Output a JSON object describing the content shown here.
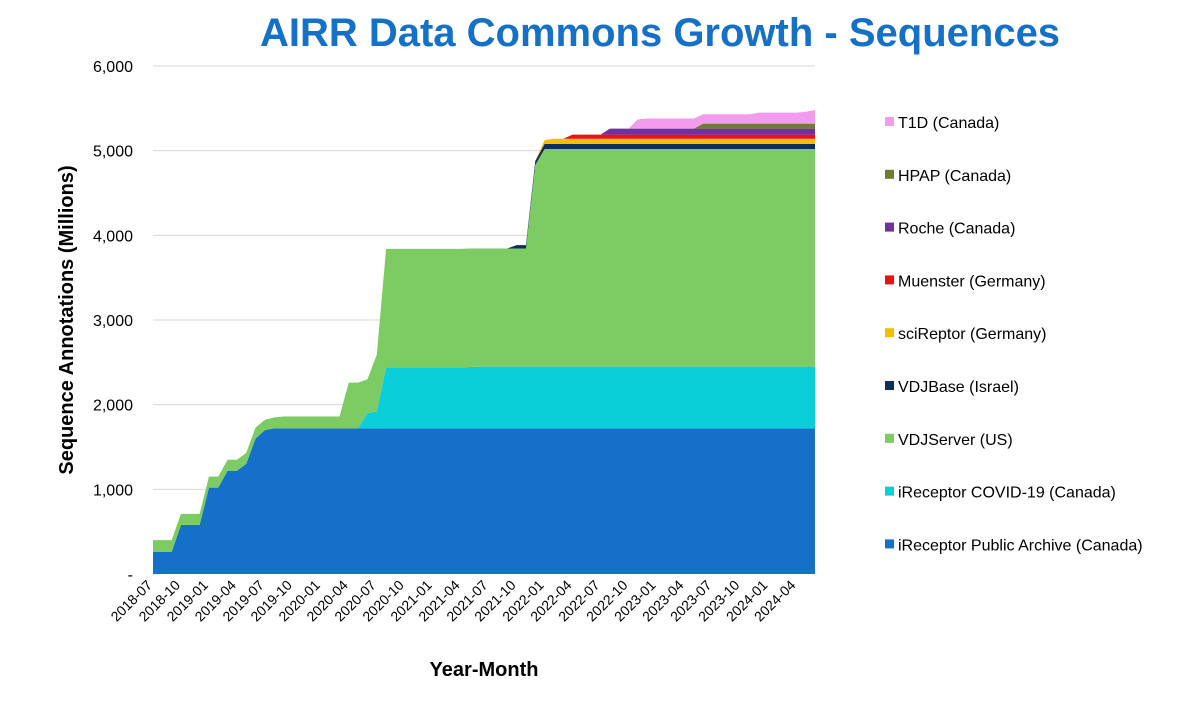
{
  "chart_data": {
    "type": "area",
    "stacked": true,
    "title": "AIRR Data Commons Growth - Sequences",
    "title_color": "#1570c8",
    "xlabel": "Year-Month",
    "ylabel": "Sequence Annotations (Millions)",
    "ylim": [
      0,
      6000
    ],
    "yticks": [
      0,
      1000,
      2000,
      3000,
      4000,
      5000,
      6000
    ],
    "ytick_labels": [
      "-",
      "1,000",
      "2,000",
      "3,000",
      "4,000",
      "5,000",
      "6,000"
    ],
    "x_tick_labels": [
      "2018-07",
      "2018-10",
      "2019-01",
      "2019-04",
      "2019-07",
      "2019-10",
      "2020-01",
      "2020-04",
      "2020-07",
      "2020-10",
      "2021-01",
      "2021-04",
      "2021-07",
      "2021-10",
      "2022-01",
      "2022-04",
      "2022-07",
      "2022-10",
      "2023-01",
      "2023-04",
      "2023-07",
      "2023-10",
      "2024-01",
      "2024-04"
    ],
    "grid": true,
    "legend_position": "right",
    "x": [
      "2018-07",
      "2018-08",
      "2018-09",
      "2018-10",
      "2018-11",
      "2018-12",
      "2019-01",
      "2019-02",
      "2019-03",
      "2019-04",
      "2019-05",
      "2019-06",
      "2019-07",
      "2019-08",
      "2019-09",
      "2019-10",
      "2019-11",
      "2019-12",
      "2020-01",
      "2020-02",
      "2020-03",
      "2020-04",
      "2020-05",
      "2020-06",
      "2020-07",
      "2020-08",
      "2020-09",
      "2020-10",
      "2020-11",
      "2020-12",
      "2021-01",
      "2021-02",
      "2021-03",
      "2021-04",
      "2021-05",
      "2021-06",
      "2021-07",
      "2021-08",
      "2021-09",
      "2021-10",
      "2021-11",
      "2021-12",
      "2022-01",
      "2022-02",
      "2022-03",
      "2022-04",
      "2022-05",
      "2022-06",
      "2022-07",
      "2022-08",
      "2022-09",
      "2022-10",
      "2022-11",
      "2022-12",
      "2023-01",
      "2023-02",
      "2023-03",
      "2023-04",
      "2023-05",
      "2023-06",
      "2023-07",
      "2023-08",
      "2023-09",
      "2023-10",
      "2023-11",
      "2023-12",
      "2024-01",
      "2024-02",
      "2024-03",
      "2024-04",
      "2024-05",
      "2024-06"
    ],
    "series": [
      {
        "name": "iReceptor Public Archive (Canada)",
        "color": "#1470c8",
        "values": [
          260,
          260,
          260,
          580,
          580,
          580,
          1020,
          1020,
          1220,
          1220,
          1300,
          1600,
          1700,
          1720,
          1720,
          1720,
          1720,
          1720,
          1720,
          1720,
          1720,
          1720,
          1720,
          1720,
          1720,
          1720,
          1720,
          1720,
          1720,
          1720,
          1720,
          1720,
          1720,
          1720,
          1720,
          1720,
          1720,
          1720,
          1720,
          1720,
          1720,
          1720,
          1720,
          1720,
          1720,
          1720,
          1720,
          1720,
          1720,
          1720,
          1720,
          1720,
          1720,
          1720,
          1720,
          1720,
          1720,
          1720,
          1720,
          1720,
          1720,
          1720,
          1720,
          1720,
          1720,
          1720,
          1720,
          1720,
          1720,
          1720,
          1720,
          1720
        ]
      },
      {
        "name": "iReceptor COVID-19 (Canada)",
        "color": "#0bcfd8",
        "values": [
          0,
          0,
          0,
          0,
          0,
          0,
          0,
          0,
          0,
          0,
          0,
          0,
          0,
          0,
          0,
          0,
          0,
          0,
          0,
          0,
          0,
          0,
          0,
          180,
          200,
          720,
          720,
          720,
          720,
          720,
          720,
          720,
          720,
          720,
          725,
          730,
          730,
          730,
          730,
          730,
          730,
          730,
          730,
          730,
          730,
          730,
          730,
          730,
          730,
          730,
          730,
          730,
          730,
          730,
          730,
          730,
          730,
          730,
          730,
          730,
          730,
          730,
          730,
          730,
          730,
          730,
          730,
          730,
          730,
          730,
          730,
          730
        ]
      },
      {
        "name": "VDJServer (US)",
        "color": "#7dcb63",
        "values": [
          140,
          140,
          140,
          130,
          130,
          130,
          130,
          130,
          130,
          130,
          130,
          130,
          120,
          130,
          140,
          140,
          140,
          140,
          140,
          140,
          140,
          540,
          540,
          400,
          670,
          1400,
          1400,
          1400,
          1400,
          1400,
          1400,
          1400,
          1400,
          1400,
          1400,
          1395,
          1395,
          1395,
          1395,
          1395,
          1395,
          2380,
          2570,
          2570,
          2570,
          2570,
          2570,
          2570,
          2570,
          2570,
          2570,
          2570,
          2570,
          2570,
          2570,
          2570,
          2570,
          2570,
          2570,
          2570,
          2570,
          2570,
          2570,
          2570,
          2570,
          2570,
          2570,
          2570,
          2570,
          2570,
          2570,
          2570
        ]
      },
      {
        "name": "VDJBase (Israel)",
        "color": "#0e2f5c",
        "values": [
          0,
          0,
          0,
          0,
          0,
          0,
          0,
          0,
          0,
          0,
          0,
          0,
          0,
          0,
          0,
          0,
          0,
          0,
          0,
          0,
          0,
          0,
          0,
          0,
          0,
          0,
          0,
          0,
          0,
          0,
          0,
          0,
          0,
          0,
          0,
          0,
          0,
          0,
          0,
          40,
          40,
          50,
          60,
          60,
          60,
          60,
          60,
          60,
          60,
          60,
          60,
          60,
          60,
          60,
          60,
          60,
          60,
          60,
          60,
          60,
          60,
          60,
          60,
          60,
          60,
          60,
          60,
          60,
          60,
          60,
          60,
          60
        ]
      },
      {
        "name": "sciReptor (Germany)",
        "color": "#f7be00",
        "values": [
          0,
          0,
          0,
          0,
          0,
          0,
          0,
          0,
          0,
          0,
          0,
          0,
          0,
          0,
          0,
          0,
          0,
          0,
          0,
          0,
          0,
          0,
          0,
          0,
          0,
          0,
          0,
          0,
          0,
          0,
          0,
          0,
          0,
          0,
          0,
          0,
          0,
          0,
          0,
          0,
          0,
          0,
          45,
          60,
          60,
          60,
          60,
          60,
          60,
          60,
          60,
          60,
          60,
          60,
          60,
          60,
          60,
          60,
          60,
          60,
          60,
          60,
          60,
          60,
          60,
          60,
          60,
          60,
          60,
          60,
          60,
          60
        ]
      },
      {
        "name": "Muenster (Germany)",
        "color": "#ee1111",
        "values": [
          0,
          0,
          0,
          0,
          0,
          0,
          0,
          0,
          0,
          0,
          0,
          0,
          0,
          0,
          0,
          0,
          0,
          0,
          0,
          0,
          0,
          0,
          0,
          0,
          0,
          0,
          0,
          0,
          0,
          0,
          0,
          0,
          0,
          0,
          0,
          0,
          0,
          0,
          0,
          0,
          0,
          0,
          0,
          0,
          0,
          50,
          50,
          50,
          50,
          50,
          50,
          50,
          50,
          50,
          50,
          50,
          50,
          50,
          50,
          50,
          50,
          50,
          50,
          50,
          50,
          50,
          50,
          50,
          50,
          50,
          50,
          50
        ]
      },
      {
        "name": "Roche (Canada)",
        "color": "#7030a0",
        "values": [
          0,
          0,
          0,
          0,
          0,
          0,
          0,
          0,
          0,
          0,
          0,
          0,
          0,
          0,
          0,
          0,
          0,
          0,
          0,
          0,
          0,
          0,
          0,
          0,
          0,
          0,
          0,
          0,
          0,
          0,
          0,
          0,
          0,
          0,
          0,
          0,
          0,
          0,
          0,
          0,
          0,
          0,
          0,
          0,
          0,
          0,
          0,
          0,
          0,
          70,
          70,
          70,
          70,
          70,
          70,
          70,
          70,
          70,
          70,
          70,
          70,
          70,
          70,
          70,
          70,
          70,
          70,
          70,
          70,
          70,
          70,
          70
        ]
      },
      {
        "name": "HPAP (Canada)",
        "color": "#6e7d30",
        "values": [
          0,
          0,
          0,
          0,
          0,
          0,
          0,
          0,
          0,
          0,
          0,
          0,
          0,
          0,
          0,
          0,
          0,
          0,
          0,
          0,
          0,
          0,
          0,
          0,
          0,
          0,
          0,
          0,
          0,
          0,
          0,
          0,
          0,
          0,
          0,
          0,
          0,
          0,
          0,
          0,
          0,
          0,
          0,
          0,
          0,
          0,
          0,
          0,
          0,
          0,
          0,
          0,
          0,
          0,
          0,
          0,
          0,
          0,
          0,
          60,
          60,
          60,
          60,
          60,
          60,
          60,
          60,
          60,
          60,
          60,
          60,
          60
        ]
      },
      {
        "name": "T1D (Canada)",
        "color": "#f39cee",
        "values": [
          0,
          0,
          0,
          0,
          0,
          0,
          0,
          0,
          0,
          0,
          0,
          0,
          0,
          0,
          0,
          0,
          0,
          0,
          0,
          0,
          0,
          0,
          0,
          0,
          0,
          0,
          0,
          0,
          0,
          0,
          0,
          0,
          0,
          0,
          0,
          0,
          0,
          0,
          0,
          0,
          0,
          0,
          0,
          0,
          0,
          0,
          0,
          0,
          0,
          0,
          0,
          0,
          110,
          120,
          120,
          120,
          120,
          120,
          120,
          110,
          110,
          110,
          110,
          110,
          110,
          130,
          130,
          130,
          130,
          130,
          140,
          160
        ]
      }
    ]
  }
}
